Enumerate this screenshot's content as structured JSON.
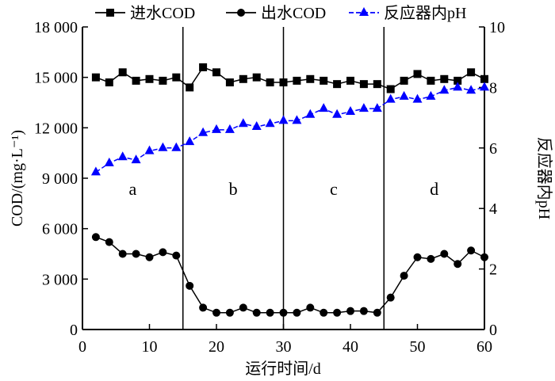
{
  "chart_data": {
    "type": "line",
    "title": "",
    "xlabel": "运行时间/d",
    "ylabel": "COD/(mg·L⁻¹)",
    "y2label": "反应器内pH",
    "xlim": [
      0,
      60
    ],
    "ylim": [
      0,
      18000
    ],
    "y2lim": [
      0,
      10
    ],
    "xticks": [
      0,
      10,
      20,
      30,
      40,
      50,
      60
    ],
    "xtick_labels": [
      "0",
      "10",
      "20",
      "30",
      "40",
      "50",
      "60"
    ],
    "yticks": [
      0,
      3000,
      6000,
      9000,
      12000,
      15000,
      18000
    ],
    "ytick_labels": [
      "0",
      "3 000",
      "6 000",
      "9 000",
      "12 000",
      "15 000",
      "18 000"
    ],
    "y2ticks": [
      0,
      2,
      4,
      6,
      8,
      10
    ],
    "y2tick_labels": [
      "0",
      "2",
      "4",
      "6",
      "8",
      "10"
    ],
    "grid": false,
    "legend_position": "top",
    "phase_dividers": [
      15,
      30,
      45
    ],
    "phase_labels": [
      {
        "label": "a",
        "x": 7.5
      },
      {
        "label": "b",
        "x": 22.5
      },
      {
        "label": "c",
        "x": 37.5
      },
      {
        "label": "d",
        "x": 52.5
      }
    ],
    "phase_label_y": 8000,
    "x": [
      2,
      4,
      6,
      8,
      10,
      12,
      14,
      16,
      18,
      20,
      22,
      24,
      26,
      28,
      30,
      32,
      34,
      36,
      38,
      40,
      42,
      44,
      46,
      48,
      50,
      52,
      54,
      56,
      58,
      60
    ],
    "series": [
      {
        "name": "进水COD",
        "axis": "left",
        "marker": "square",
        "color": "#000000",
        "dashed": false,
        "values": [
          15000,
          14700,
          15300,
          14800,
          14900,
          14800,
          15000,
          14400,
          15600,
          15300,
          14700,
          14900,
          15000,
          14700,
          14700,
          14800,
          14900,
          14800,
          14600,
          14800,
          14600,
          14600,
          14300,
          14800,
          15200,
          14800,
          14900,
          14800,
          15300,
          14900
        ]
      },
      {
        "name": "出水COD",
        "axis": "left",
        "marker": "circle",
        "color": "#000000",
        "dashed": false,
        "values": [
          5500,
          5200,
          4500,
          4500,
          4300,
          4600,
          4400,
          2600,
          1300,
          1000,
          1000,
          1300,
          1000,
          1000,
          1000,
          1000,
          1300,
          1000,
          1000,
          1100,
          1100,
          1000,
          1900,
          3200,
          4300,
          4200,
          4500,
          3900,
          4700,
          4300
        ]
      },
      {
        "name": "反应器内pH",
        "axis": "right",
        "marker": "triangle",
        "color": "#0000ff",
        "dashed": true,
        "values": [
          5.2,
          5.5,
          5.7,
          5.6,
          5.9,
          6.0,
          6.0,
          6.2,
          6.5,
          6.6,
          6.6,
          6.8,
          6.7,
          6.8,
          6.9,
          6.9,
          7.1,
          7.3,
          7.1,
          7.2,
          7.3,
          7.3,
          7.6,
          7.7,
          7.6,
          7.7,
          7.9,
          8.0,
          7.9,
          8.0
        ]
      }
    ]
  }
}
